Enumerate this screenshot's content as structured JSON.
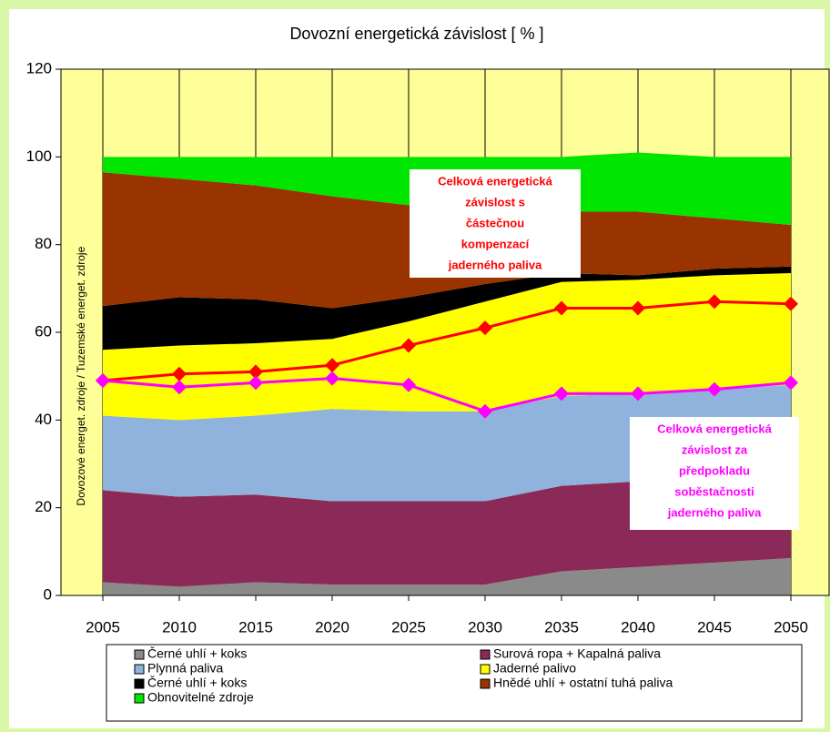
{
  "chart_data": {
    "type": "stacked-area",
    "title": "Dovozní energetická závislost [ % ]",
    "y_label": "Dovozové energet. zdroje / Tuzemské energet. zdroje",
    "categories": [
      "2005",
      "2010",
      "2015",
      "2020",
      "2025",
      "2030",
      "2035",
      "2040",
      "2045",
      "2050"
    ],
    "ylim": [
      0,
      120
    ],
    "yticks": [
      0,
      20,
      40,
      60,
      80,
      100,
      120
    ],
    "series": [
      {
        "name": "Černé uhlí + koks",
        "color": "#8a8a8a",
        "values": [
          3,
          2,
          3,
          2.5,
          2.5,
          2.5,
          5.5,
          6.5,
          7.5,
          8.5
        ]
      },
      {
        "name": "Surová ropa + Kapalná paliva",
        "color": "#8b2a58",
        "values": [
          21,
          20.5,
          20,
          19,
          19,
          19,
          19.5,
          19.5,
          19,
          18.5
        ]
      },
      {
        "name": "Plynná paliva",
        "color": "#8fb3dc",
        "values": [
          17,
          17.5,
          18,
          21,
          20.5,
          20.5,
          20.5,
          20,
          20.5,
          21
        ]
      },
      {
        "name": "Jaderné palivo",
        "color": "#ffff00",
        "values": [
          15,
          17,
          16.5,
          16,
          20.5,
          25,
          26,
          26,
          26,
          25.5
        ]
      },
      {
        "name": "Černé uhlí + koks",
        "color": "#000000",
        "values": [
          10,
          11,
          10,
          7,
          5.5,
          4,
          2,
          1,
          1.5,
          1.5
        ]
      },
      {
        "name": "Hnědé uhlí + ostatní tuhá paliva",
        "color": "#993300",
        "values": [
          30.5,
          27,
          26,
          25.5,
          21,
          16.5,
          14,
          14.5,
          11.5,
          9.5
        ]
      },
      {
        "name": "Obnovitelné zdroje",
        "color": "#00e600",
        "values": [
          3.5,
          5,
          6.5,
          9,
          11,
          12.5,
          12.5,
          13.5,
          14,
          15.5
        ]
      }
    ],
    "lines": [
      {
        "color": "#ff0000",
        "values": [
          49,
          50.5,
          51,
          52.5,
          57,
          61,
          65.5,
          65.5,
          67,
          66.5
        ]
      },
      {
        "color": "#ff00ff",
        "values": [
          49,
          47.5,
          48.5,
          49.5,
          48,
          42,
          46,
          46,
          47,
          48.5
        ]
      }
    ],
    "annotations": [
      {
        "color": "#ff0000",
        "lines": [
          "Celková energetická",
          "závislost s",
          "částečnou",
          "kompenzací",
          "jaderného paliva"
        ]
      },
      {
        "color": "#ff00ff",
        "lines": [
          "Celková energetická",
          "závislost za",
          "předpokladu",
          "soběstačnosti",
          "jaderného paliva"
        ]
      }
    ]
  }
}
